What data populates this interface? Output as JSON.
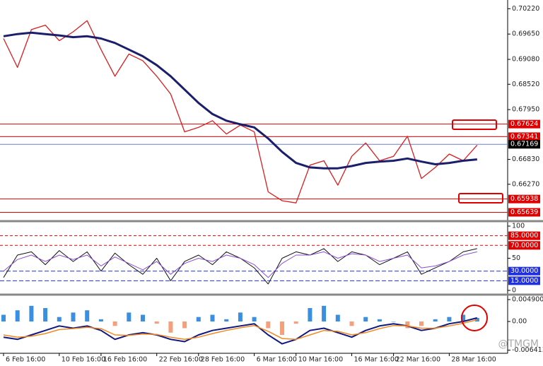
{
  "chart_data": [
    {
      "type": "line",
      "ylim": [
        0.65456,
        0.70416
      ],
      "yticks": [
        {
          "value": 0.7022,
          "label": "0.70220"
        },
        {
          "value": 0.6965,
          "label": "0.69650"
        },
        {
          "value": 0.6908,
          "label": "0.69080"
        },
        {
          "value": 0.6852,
          "label": "0.68520"
        },
        {
          "value": 0.6795,
          "label": "0.67950"
        },
        {
          "value": 0.6683,
          "label": "0.66830"
        },
        {
          "value": 0.6627,
          "label": "0.66270"
        }
      ],
      "hlines": [
        {
          "value": 0.67624,
          "color": "#e00000",
          "label_bg": "#e00000",
          "label_color": "#ffffff"
        },
        {
          "value": 0.67341,
          "color": "#e00000",
          "label_bg": "#e00000",
          "label_color": "#ffffff"
        },
        {
          "value": 0.67169,
          "color": "#6f7fd0",
          "label_bg": "#000000",
          "label_color": "#ffffff"
        },
        {
          "value": 0.65938,
          "color": "#e00000",
          "label_bg": "#e00000",
          "label_color": "#ffffff"
        },
        {
          "value": 0.65639,
          "color": "#e00000",
          "label_bg": "#e00000",
          "label_color": "#ffffff"
        }
      ],
      "series": [
        {
          "color": "#d81e1e",
          "width": 1.3,
          "values": [
            0.6955,
            0.689,
            0.6975,
            0.6985,
            0.695,
            0.697,
            0.6995,
            0.693,
            0.687,
            0.692,
            0.6905,
            0.687,
            0.683,
            0.6745,
            0.6755,
            0.677,
            0.674,
            0.676,
            0.6745,
            0.661,
            0.659,
            0.6585,
            0.667,
            0.668,
            0.6625,
            0.669,
            0.672,
            0.668,
            0.669,
            0.6735,
            0.664,
            0.6665,
            0.6695,
            0.668,
            0.6715
          ]
        },
        {
          "color": "#1b1f6b",
          "width": 3,
          "values": [
            0.696,
            0.6965,
            0.6968,
            0.6965,
            0.6962,
            0.6958,
            0.696,
            0.6955,
            0.6945,
            0.693,
            0.6915,
            0.6895,
            0.687,
            0.684,
            0.681,
            0.6785,
            0.677,
            0.6762,
            0.6755,
            0.673,
            0.67,
            0.6675,
            0.6665,
            0.6663,
            0.6663,
            0.6668,
            0.6675,
            0.6678,
            0.668,
            0.6685,
            0.6678,
            0.6672,
            0.6675,
            0.668,
            0.6683
          ]
        }
      ]
    },
    {
      "type": "line",
      "ylim": [
        -4.4,
        105.5
      ],
      "yticks": [
        100,
        50,
        0
      ],
      "hlines": [
        {
          "value": 85,
          "label": "85.0000",
          "color": "#e00000",
          "label_bg": "#e00000",
          "label_color": "#ffffff"
        },
        {
          "value": 70,
          "label": "70.0000",
          "color": "#e00000",
          "label_bg": "#e00000",
          "label_color": "#ffffff"
        },
        {
          "value": 30,
          "label": "30.0000",
          "color": "#2030e0",
          "label_bg": "#2030e0",
          "label_color": "#ffffff"
        },
        {
          "value": 15,
          "label": "15.0000",
          "color": "#2030e0",
          "label_bg": "#2030e0",
          "label_color": "#ffffff"
        }
      ],
      "series": [
        {
          "color": "#111111",
          "width": 1,
          "values": [
            20,
            55,
            60,
            40,
            62,
            45,
            60,
            30,
            58,
            40,
            25,
            50,
            15,
            45,
            55,
            40,
            60,
            50,
            35,
            10,
            50,
            60,
            55,
            65,
            45,
            60,
            55,
            40,
            50,
            60,
            25,
            35,
            45,
            60,
            65
          ]
        },
        {
          "color": "#8a4fd0",
          "width": 1,
          "values": [
            30,
            48,
            55,
            45,
            55,
            48,
            55,
            38,
            52,
            42,
            32,
            45,
            25,
            42,
            50,
            45,
            55,
            50,
            40,
            20,
            42,
            55,
            55,
            60,
            50,
            57,
            55,
            45,
            50,
            55,
            35,
            38,
            45,
            55,
            60
          ]
        }
      ]
    },
    {
      "type": "macd",
      "ylim": [
        -0.00711,
        0.00553
      ],
      "yticks": [
        0.0049007,
        {
          "value": 0,
          "label": "0.00"
        },
        -0.0064131
      ],
      "categories": [
        "6 Feb 16:00",
        null,
        null,
        null,
        "10 Feb 16:00",
        null,
        null,
        "16 Feb 16:00",
        null,
        null,
        null,
        "22 Feb 16:00",
        null,
        null,
        "28 Feb 16:00",
        null,
        null,
        null,
        "6 Mar 16:00",
        null,
        null,
        "10 Mar 16:00",
        null,
        null,
        null,
        "16 Mar 16:00",
        null,
        null,
        "22 Mar 16:00",
        null,
        null,
        null,
        "28 Mar 16:00",
        null,
        null
      ],
      "bar_up_color": "#3a8fe0",
      "bar_down_color": "#f4a07a",
      "bars": [
        0.0015,
        0.0025,
        0.0035,
        0.003,
        0.001,
        0.002,
        0.0025,
        0.0005,
        -0.001,
        0.002,
        0.0015,
        -0.0005,
        -0.0025,
        -0.0015,
        0.001,
        0.0015,
        0.0005,
        0.002,
        0.001,
        -0.0015,
        -0.003,
        -0.0005,
        0.003,
        0.0035,
        0.0015,
        -0.001,
        0.001,
        0.0005,
        0,
        -0.0015,
        -0.001,
        0.0005,
        0.001,
        0.0015,
        0.0008
      ],
      "series": [
        {
          "color": "#101880",
          "width": 2,
          "values": [
            -0.0035,
            -0.004,
            -0.003,
            -0.002,
            -0.001,
            -0.0015,
            -0.001,
            -0.002,
            -0.004,
            -0.003,
            -0.0025,
            -0.003,
            -0.004,
            -0.0045,
            -0.003,
            -0.002,
            -0.0015,
            -0.001,
            -0.0005,
            -0.003,
            -0.005,
            -0.004,
            -0.002,
            -0.0015,
            -0.0025,
            -0.0035,
            -0.002,
            -0.001,
            -0.0005,
            -0.001,
            -0.002,
            -0.0015,
            -0.0005,
            0,
            0.0008
          ]
        },
        {
          "color": "#f08a20",
          "width": 1.5,
          "values": [
            -0.003,
            -0.0035,
            -0.0033,
            -0.0027,
            -0.0018,
            -0.0016,
            -0.0013,
            -0.0016,
            -0.003,
            -0.0031,
            -0.0028,
            -0.0029,
            -0.0035,
            -0.004,
            -0.0035,
            -0.0027,
            -0.002,
            -0.0014,
            -0.0009,
            -0.0022,
            -0.0038,
            -0.004,
            -0.003,
            -0.002,
            -0.0022,
            -0.003,
            -0.0025,
            -0.0016,
            -0.0009,
            -0.001,
            -0.0015,
            -0.0015,
            -0.001,
            -0.0004,
            0.0004
          ]
        }
      ]
    }
  ],
  "watermark": "@TMGM"
}
